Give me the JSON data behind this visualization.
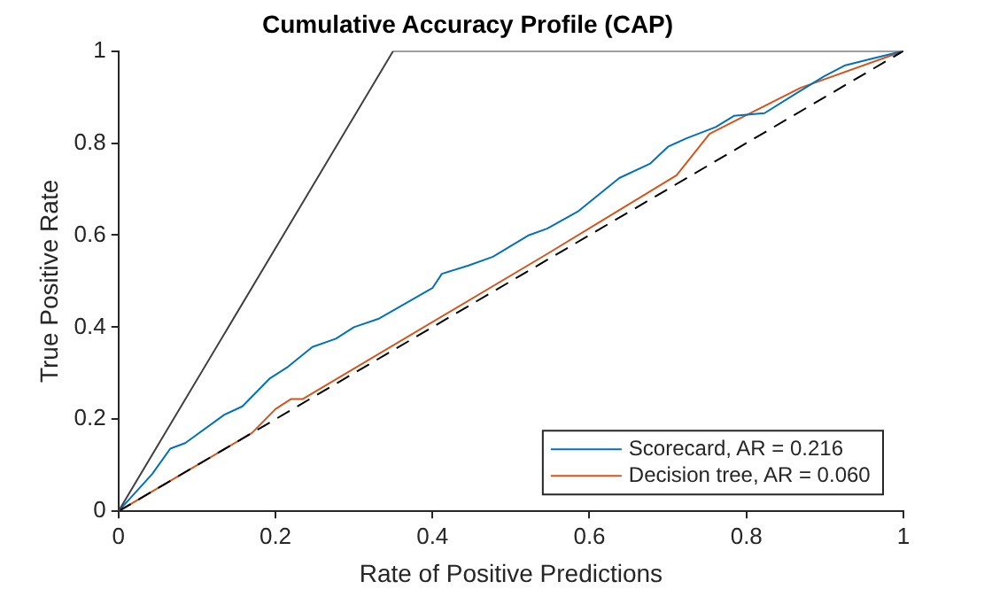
{
  "chart_data": {
    "type": "line",
    "title": "Cumulative Accuracy Profile (CAP)",
    "xlabel": "Rate of Positive Predictions",
    "ylabel": "True Positive Rate",
    "xlim": [
      0,
      1
    ],
    "ylim": [
      0,
      1
    ],
    "xticks": [
      0,
      0.2,
      0.4,
      0.6,
      0.8,
      1
    ],
    "yticks": [
      0,
      0.2,
      0.4,
      0.6,
      0.8,
      1
    ],
    "grid": false,
    "legend": "bottom right",
    "marker": "none",
    "series": [
      {
        "color": "#404040",
        "line_style": "solid",
        "x": [
          0,
          0.35,
          1
        ],
        "values": [
          0,
          1,
          1
        ]
      },
      {
        "color": "#000000",
        "line_style": "dashed",
        "x": [
          0,
          1
        ],
        "values": [
          0,
          1
        ]
      },
      {
        "name": "Scorecard, AR = 0.216",
        "color": "#0072bd",
        "line_style": "solid",
        "x": [
          0,
          0.043,
          0.066,
          0.085,
          0.135,
          0.158,
          0.193,
          0.216,
          0.247,
          0.277,
          0.3,
          0.331,
          0.369,
          0.4,
          0.412,
          0.446,
          0.477,
          0.523,
          0.546,
          0.585,
          0.638,
          0.677,
          0.7,
          0.723,
          0.761,
          0.784,
          0.823,
          0.869,
          0.899,
          0.926,
          0.961,
          1
        ],
        "values": [
          0,
          0.081,
          0.136,
          0.148,
          0.21,
          0.228,
          0.289,
          0.314,
          0.357,
          0.375,
          0.4,
          0.418,
          0.455,
          0.485,
          0.516,
          0.534,
          0.553,
          0.6,
          0.614,
          0.651,
          0.724,
          0.755,
          0.792,
          0.81,
          0.835,
          0.859,
          0.865,
          0.914,
          0.945,
          0.969,
          0.984,
          1
        ]
      },
      {
        "name": "Decision tree, AR = 0.060",
        "color": "#d95319",
        "line_style": "solid",
        "x": [
          0,
          0.17,
          0.2,
          0.22,
          0.235,
          0.546,
          0.711,
          0.753,
          0.784,
          0.869,
          1
        ],
        "values": [
          0,
          0.17,
          0.222,
          0.244,
          0.244,
          0.559,
          0.73,
          0.82,
          0.847,
          0.92,
          1
        ]
      }
    ]
  }
}
